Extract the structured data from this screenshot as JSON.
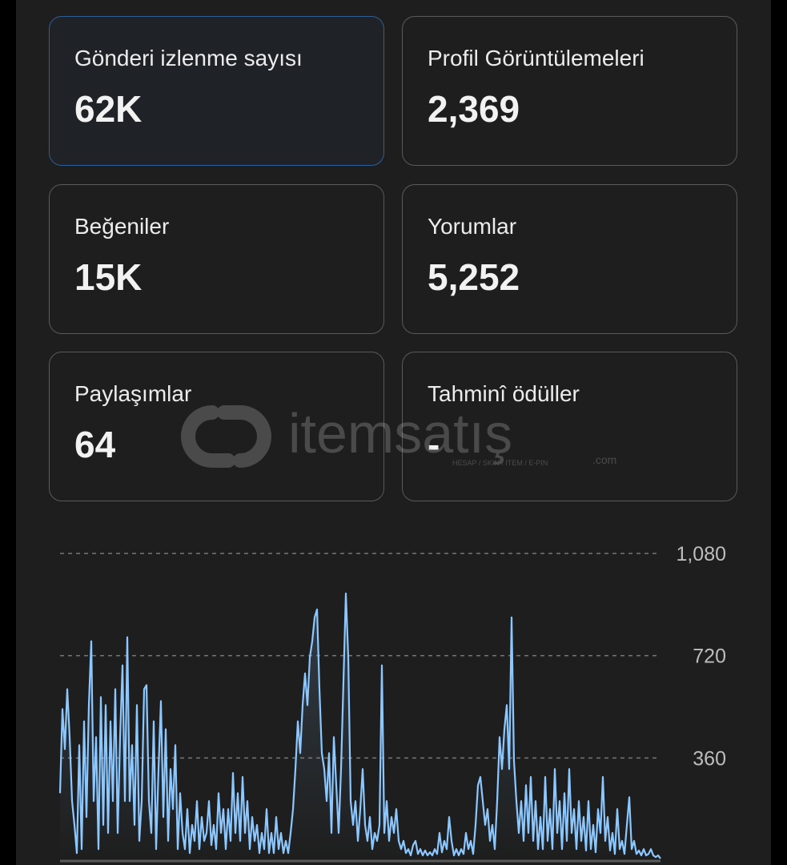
{
  "cards": [
    {
      "label": "Gönderi izlenme sayısı",
      "value": "62K",
      "selected": true
    },
    {
      "label": "Profil Görüntülemeleri",
      "value": "2,369"
    },
    {
      "label": "Beğeniler",
      "value": "15K"
    },
    {
      "label": "Yorumlar",
      "value": "5,252"
    },
    {
      "label": "Paylaşımlar",
      "value": "64"
    },
    {
      "label": "Tahminî ödüller",
      "value": "-"
    }
  ],
  "watermark": {
    "name": "itemsatış",
    "tagline": "HESAP / SKIN / ITEM / E-PIN",
    "suffix": ".com"
  },
  "colors": {
    "line": "#8cc8ff",
    "accent_border": "#2f5f93",
    "grid": "#777777"
  },
  "chart_data": {
    "type": "line",
    "ylim": [
      0,
      1080
    ],
    "yticks": [
      {
        "value": 1080,
        "label": "1,080"
      },
      {
        "value": 720,
        "label": "720"
      },
      {
        "value": 360,
        "label": "360"
      }
    ],
    "grid": true,
    "values": [
      236,
      532,
      391,
      602,
      433,
      208,
      124,
      25,
      405,
      39,
      489,
      152,
      546,
      771,
      208,
      433,
      39,
      574,
      124,
      546,
      96,
      489,
      208,
      602,
      96,
      433,
      686,
      208,
      785,
      208,
      405,
      124,
      546,
      68,
      208,
      602,
      616,
      208,
      96,
      489,
      39,
      321,
      560,
      152,
      461,
      68,
      321,
      180,
      405,
      39,
      236,
      96,
      39,
      180,
      25,
      124,
      68,
      208,
      39,
      152,
      68,
      96,
      208,
      53,
      124,
      39,
      236,
      96,
      180,
      39,
      180,
      68,
      307,
      96,
      236,
      68,
      293,
      96,
      208,
      39,
      152,
      68,
      124,
      25,
      96,
      39,
      180,
      25,
      96,
      25,
      152,
      39,
      96,
      25,
      68,
      25,
      96,
      180,
      321,
      489,
      377,
      546,
      658,
      546,
      714,
      771,
      855,
      883,
      602,
      377,
      321,
      208,
      377,
      96,
      433,
      264,
      96,
      321,
      630,
      939,
      714,
      208,
      124,
      208,
      68,
      180,
      321,
      124,
      68,
      152,
      39,
      96,
      68,
      124,
      686,
      96,
      208,
      68,
      152,
      96,
      180,
      68,
      39,
      68,
      25,
      39,
      17,
      53,
      68,
      22,
      39,
      17,
      34,
      17,
      28,
      17,
      39,
      22,
      96,
      28,
      68,
      39,
      152,
      68,
      17,
      39,
      17,
      39,
      22,
      96,
      39,
      68,
      22,
      124,
      264,
      293,
      208,
      124,
      180,
      68,
      124,
      39,
      208,
      433,
      321,
      461,
      546,
      321,
      855,
      349,
      208,
      96,
      208,
      68,
      264,
      96,
      293,
      68,
      208,
      39,
      152,
      39,
      293,
      68,
      180,
      39,
      321,
      96,
      208,
      39,
      236,
      68,
      321,
      96,
      180,
      39,
      208,
      68,
      152,
      34,
      208,
      39,
      124,
      28,
      180,
      96,
      293,
      68,
      152,
      34,
      96,
      22,
      180,
      39,
      68,
      22,
      124,
      222,
      39,
      68,
      22,
      34,
      17,
      39,
      17,
      22,
      39,
      17,
      11,
      17,
      6
    ]
  }
}
